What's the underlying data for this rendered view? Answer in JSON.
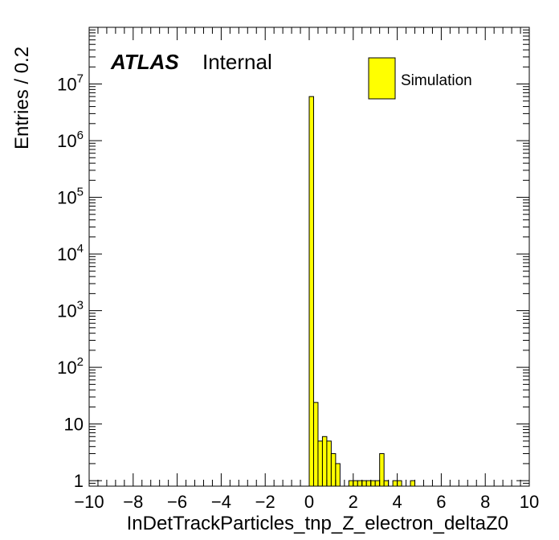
{
  "chart_data": {
    "type": "bar",
    "xlabel": "InDetTrackParticles_tnp_Z_electron_deltaZ0",
    "ylabel": "Entries / 0.2",
    "xlim": [
      -10,
      10
    ],
    "ylim": [
      0.8,
      100000000
    ],
    "yscale": "log",
    "bin_width": 0.2,
    "x_ticks": [
      -10,
      -8,
      -6,
      -4,
      -2,
      0,
      2,
      4,
      6,
      8,
      10
    ],
    "x_tick_labels": [
      "−10",
      "−8",
      "−6",
      "−4",
      "−2",
      "0",
      "2",
      "4",
      "6",
      "8",
      "10"
    ],
    "y_ticks": [
      1,
      10,
      100,
      1000,
      10000,
      100000,
      1000000,
      10000000
    ],
    "y_tick_labels": [
      {
        "base": "1",
        "exp": ""
      },
      {
        "base": "10",
        "exp": ""
      },
      {
        "base": "10",
        "exp": "2"
      },
      {
        "base": "10",
        "exp": "3"
      },
      {
        "base": "10",
        "exp": "4"
      },
      {
        "base": "10",
        "exp": "5"
      },
      {
        "base": "10",
        "exp": "6"
      },
      {
        "base": "10",
        "exp": "7"
      }
    ],
    "bins": [
      {
        "x0": 0.0,
        "x1": 0.2,
        "value": 6000000
      },
      {
        "x0": 0.2,
        "x1": 0.4,
        "value": 24
      },
      {
        "x0": 0.4,
        "x1": 0.6,
        "value": 5
      },
      {
        "x0": 0.6,
        "x1": 0.8,
        "value": 6
      },
      {
        "x0": 0.8,
        "x1": 1.0,
        "value": 5
      },
      {
        "x0": 1.0,
        "x1": 1.2,
        "value": 3
      },
      {
        "x0": 1.2,
        "x1": 1.4,
        "value": 2
      },
      {
        "x0": 1.8,
        "x1": 2.0,
        "value": 1
      },
      {
        "x0": 2.0,
        "x1": 2.2,
        "value": 1
      },
      {
        "x0": 2.2,
        "x1": 2.4,
        "value": 1
      },
      {
        "x0": 2.4,
        "x1": 2.6,
        "value": 1
      },
      {
        "x0": 2.6,
        "x1": 2.8,
        "value": 1
      },
      {
        "x0": 2.8,
        "x1": 3.0,
        "value": 1
      },
      {
        "x0": 3.0,
        "x1": 3.2,
        "value": 1
      },
      {
        "x0": 3.2,
        "x1": 3.4,
        "value": 3
      },
      {
        "x0": 3.4,
        "x1": 3.6,
        "value": 1
      },
      {
        "x0": 3.8,
        "x1": 4.0,
        "value": 1
      },
      {
        "x0": 4.0,
        "x1": 4.2,
        "value": 1
      },
      {
        "x0": 4.6,
        "x1": 4.8,
        "value": 1
      }
    ],
    "series": [
      {
        "name": "Simulation",
        "color": "#ffff00"
      }
    ],
    "legend_position": "top-right",
    "fill_color": "#ffff00",
    "line_color": "#000000",
    "labels": {
      "experiment": "ATLAS",
      "status": "Internal"
    }
  }
}
